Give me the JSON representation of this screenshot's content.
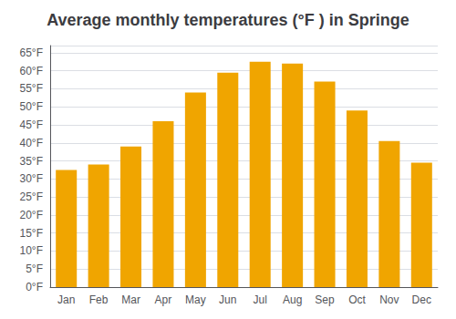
{
  "chart_data": {
    "type": "bar",
    "title": "Average monthly temperatures (°F ) in Springe",
    "categories": [
      "Jan",
      "Feb",
      "Mar",
      "Apr",
      "May",
      "Jun",
      "Jul",
      "Aug",
      "Sep",
      "Oct",
      "Nov",
      "Dec"
    ],
    "values": [
      32.5,
      34.0,
      39.0,
      46.0,
      54.0,
      59.5,
      62.5,
      62.0,
      57.0,
      49.0,
      40.5,
      34.5
    ],
    "color": "#F0A500",
    "ylim": [
      0,
      67
    ],
    "yticks": [
      {
        "value": 0,
        "label": "0°F"
      },
      {
        "value": 5,
        "label": "5°F"
      },
      {
        "value": 10,
        "label": "10°F"
      },
      {
        "value": 15,
        "label": "15°F"
      },
      {
        "value": 20,
        "label": "20°F"
      },
      {
        "value": 25,
        "label": "25°F"
      },
      {
        "value": 30,
        "label": "30°F"
      },
      {
        "value": 35,
        "label": "35°F"
      },
      {
        "value": 40,
        "label": "40°F"
      },
      {
        "value": 45,
        "label": "45°F"
      },
      {
        "value": 50,
        "label": "50°F"
      },
      {
        "value": 55,
        "label": "55°F"
      },
      {
        "value": 60,
        "label": "60°F"
      },
      {
        "value": 65,
        "label": "65°F"
      }
    ],
    "grid": true
  }
}
